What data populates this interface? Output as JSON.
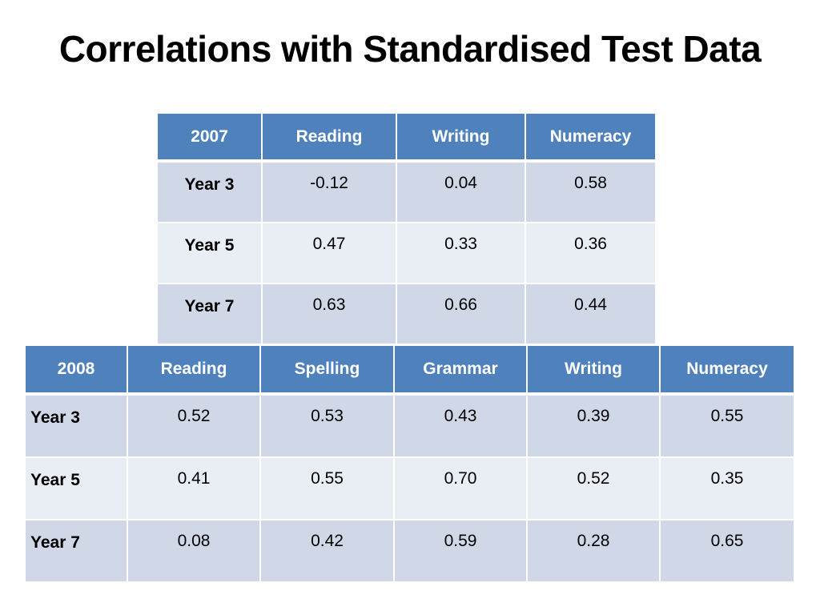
{
  "slide": {
    "title": "Correlations with Standardised Test Data"
  },
  "table_2007": {
    "corner": "2007",
    "columns": [
      "Reading",
      "Writing",
      "Numeracy"
    ],
    "rows": [
      {
        "label": "Year 3",
        "values": [
          "-0.12",
          "0.04",
          "0.58"
        ]
      },
      {
        "label": "Year 5",
        "values": [
          "0.47",
          "0.33",
          "0.36"
        ]
      },
      {
        "label": "Year 7",
        "values": [
          "0.63",
          "0.66",
          "0.44"
        ]
      }
    ]
  },
  "table_2008": {
    "corner": "2008",
    "columns": [
      "Reading",
      "Spelling",
      "Grammar",
      "Writing",
      "Numeracy"
    ],
    "rows": [
      {
        "label": "Year 3",
        "values": [
          "0.52",
          "0.53",
          "0.43",
          "0.39",
          "0.55"
        ]
      },
      {
        "label": "Year 5",
        "values": [
          "0.41",
          "0.55",
          "0.70",
          "0.52",
          "0.35"
        ]
      },
      {
        "label": "Year 7",
        "values": [
          "0.08",
          "0.42",
          "0.59",
          "0.28",
          "0.65"
        ]
      }
    ]
  },
  "colors": {
    "header_bg": "#4f81bd",
    "header_text": "#ffffff",
    "row_band_dark": "#d0d8e8",
    "row_band_light": "#e9edf4"
  }
}
